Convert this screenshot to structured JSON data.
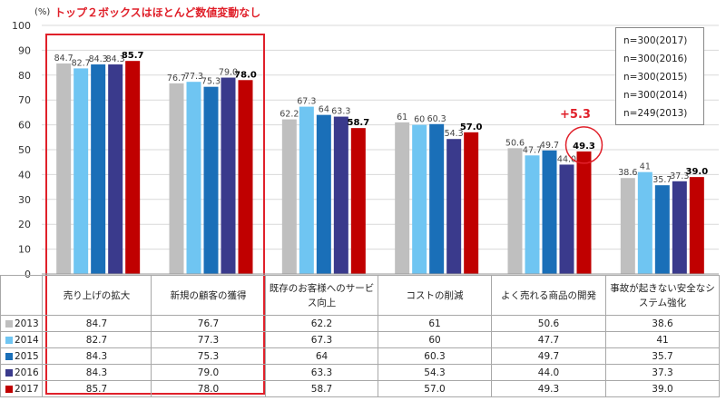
{
  "page": {
    "y_unit": "(%)",
    "annotation_title": "トップ２ボックスはほとんど数値変動なし",
    "delta_label": "+5.3"
  },
  "legend": [
    "n=300(2017)",
    "n=300(2016)",
    "n=300(2015)",
    "n=300(2014)",
    "n=249(2013)"
  ],
  "colors": {
    "2013": "#bfbfbf",
    "2014": "#6fc5f2",
    "2015": "#1a6fb8",
    "2016": "#3a3a8c",
    "2017": "#c00000",
    "highlight": "#e0202a"
  },
  "chart_data": {
    "type": "bar",
    "categories": [
      "売り上げの拡大",
      "新規の顧客の獲得",
      "既存のお客様へのサービス向上",
      "コストの削減",
      "よく売れる商品の開発",
      "事故が起きない安全なシステム強化"
    ],
    "series": [
      {
        "name": "2013",
        "values": [
          84.7,
          76.7,
          62.2,
          61,
          50.6,
          38.6
        ],
        "labels": [
          "84.7",
          "76.7",
          "62.2",
          "61",
          "50.6",
          "38.6"
        ]
      },
      {
        "name": "2014",
        "values": [
          82.7,
          77.3,
          67.3,
          60,
          47.7,
          41
        ],
        "labels": [
          "82.7",
          "77.3",
          "67.3",
          "60",
          "47.7",
          "41"
        ]
      },
      {
        "name": "2015",
        "values": [
          84.3,
          75.3,
          64,
          60.3,
          49.7,
          35.7
        ],
        "labels": [
          "84.3",
          "75.3",
          "64",
          "60.3",
          "49.7",
          "35.7"
        ]
      },
      {
        "name": "2016",
        "values": [
          84.3,
          79.0,
          63.3,
          54.3,
          44.0,
          37.3
        ],
        "labels": [
          "84.3",
          "79.0",
          "63.3",
          "54.3",
          "44.0",
          "37.3"
        ]
      },
      {
        "name": "2017",
        "values": [
          85.7,
          78.0,
          58.7,
          57.0,
          49.3,
          39.0
        ],
        "labels": [
          "85.7",
          "78.0",
          "58.7",
          "57.0",
          "49.3",
          "39.0"
        ]
      }
    ],
    "ylim": [
      0,
      100
    ],
    "yticks": [
      "0",
      "10",
      "20",
      "30",
      "40",
      "50",
      "60",
      "70",
      "80",
      "90",
      "100"
    ],
    "grid": true,
    "legend_placement": "top-right"
  },
  "table": {
    "headers": [
      "売り上げの拡大",
      "新規の顧客の獲得",
      "既存のお客様へのサービス向上",
      "コストの削減",
      "よく売れる商品の開発",
      "事故が起きない安全なシステム強化"
    ],
    "rows": [
      {
        "year": "2013",
        "cells": [
          "84.7",
          "76.7",
          "62.2",
          "61",
          "50.6",
          "38.6"
        ]
      },
      {
        "year": "2014",
        "cells": [
          "82.7",
          "77.3",
          "67.3",
          "60",
          "47.7",
          "41"
        ]
      },
      {
        "year": "2015",
        "cells": [
          "84.3",
          "75.3",
          "64",
          "60.3",
          "49.7",
          "35.7"
        ]
      },
      {
        "year": "2016",
        "cells": [
          "84.3",
          "79.0",
          "63.3",
          "54.3",
          "44.0",
          "37.3"
        ]
      },
      {
        "year": "2017",
        "cells": [
          "85.7",
          "78.0",
          "58.7",
          "57.0",
          "49.3",
          "39.0"
        ]
      }
    ]
  }
}
